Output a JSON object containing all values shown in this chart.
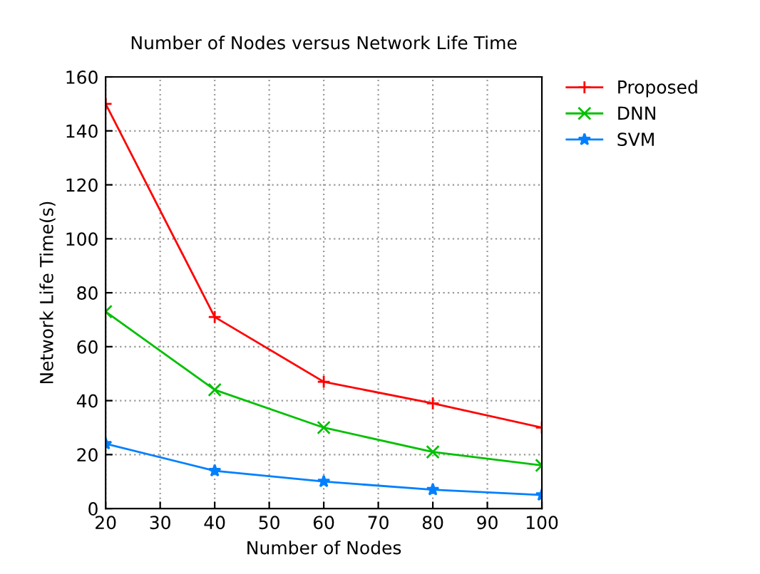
{
  "chart_data": {
    "type": "line",
    "title": "Number of Nodes versus Network Life Time",
    "xlabel": "Number of Nodes",
    "ylabel": "Network Life Time(s)",
    "x": [
      20,
      40,
      60,
      80,
      100
    ],
    "series": [
      {
        "name": "Proposed",
        "color": "#ff0000",
        "marker": "plus",
        "values": [
          150,
          71,
          47,
          39,
          30
        ]
      },
      {
        "name": "DNN",
        "color": "#00c000",
        "marker": "cross",
        "values": [
          73,
          44,
          30,
          21,
          16
        ]
      },
      {
        "name": "SVM",
        "color": "#0080ff",
        "marker": "star",
        "values": [
          24,
          14,
          10,
          7,
          5
        ]
      }
    ],
    "xlim": [
      20,
      100
    ],
    "xticks": [
      20,
      30,
      40,
      50,
      60,
      70,
      80,
      90,
      100
    ],
    "ylim": [
      0,
      160
    ],
    "yticks": [
      0,
      20,
      40,
      60,
      80,
      100,
      120,
      140,
      160
    ],
    "grid": true,
    "legend": "top right",
    "line_style": "solid"
  }
}
